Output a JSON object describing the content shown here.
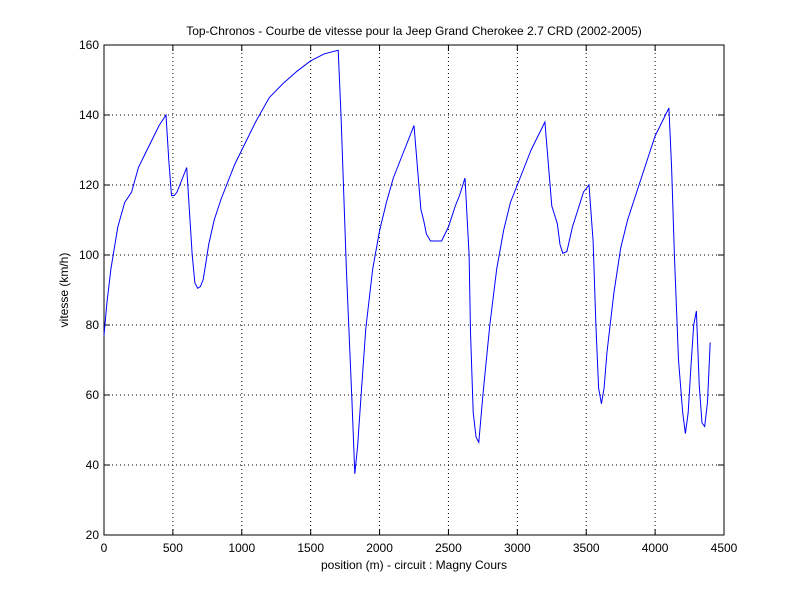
{
  "chart_data": {
    "type": "line",
    "title": "Top-Chronos - Courbe de vitesse pour la Jeep Grand Cherokee 2.7 CRD (2002-2005)",
    "xlabel": "position (m) - circuit : Magny Cours",
    "ylabel": "vitesse (km/h)",
    "xlim": [
      0,
      4500
    ],
    "ylim": [
      20,
      160
    ],
    "xticks": [
      0,
      500,
      1000,
      1500,
      2000,
      2500,
      3000,
      3500,
      4000,
      4500
    ],
    "yticks": [
      20,
      40,
      60,
      80,
      100,
      120,
      140,
      160
    ],
    "grid": true,
    "line_color": "#0000ff",
    "series": [
      {
        "x": [
          0,
          20,
          50,
          100,
          150,
          200,
          250,
          300,
          350,
          400,
          450,
          470,
          490,
          510,
          530,
          560,
          600,
          640,
          660,
          680,
          700,
          720,
          740,
          760,
          800,
          850,
          900,
          950,
          1000,
          1100,
          1200,
          1300,
          1400,
          1500,
          1600,
          1700,
          1720,
          1760,
          1800,
          1820,
          1840,
          1870,
          1900,
          1950,
          2000,
          2050,
          2100,
          2150,
          2200,
          2250,
          2300,
          2320,
          2340,
          2370,
          2400,
          2450,
          2500,
          2550,
          2580,
          2620,
          2650,
          2660,
          2680,
          2700,
          2720,
          2750,
          2800,
          2850,
          2900,
          2950,
          3000,
          3050,
          3100,
          3150,
          3200,
          3250,
          3290,
          3310,
          3330,
          3360,
          3400,
          3440,
          3480,
          3520,
          3550,
          3570,
          3590,
          3610,
          3630,
          3650,
          3700,
          3750,
          3800,
          3850,
          3900,
          3950,
          4000,
          4050,
          4100,
          4120,
          4140,
          4170,
          4200,
          4220,
          4240,
          4260,
          4280,
          4300,
          4320,
          4340,
          4360,
          4380,
          4400
        ],
        "y": [
          77,
          86,
          96,
          108,
          115,
          118,
          125,
          129,
          133,
          137,
          140,
          127,
          117,
          117,
          118,
          121,
          125,
          100,
          92,
          90.5,
          91,
          93,
          98,
          103,
          110,
          116,
          121,
          126,
          130,
          138,
          145,
          149,
          152.5,
          155.5,
          157.5,
          158.5,
          140,
          95,
          58,
          37.5,
          45,
          62,
          79,
          96,
          107,
          115,
          122,
          127,
          132,
          137,
          113,
          110,
          106,
          104,
          104,
          104,
          108,
          114,
          117,
          122,
          100,
          78,
          55,
          48,
          46.5,
          60,
          80,
          96,
          107,
          115,
          120,
          125,
          130,
          134,
          138,
          114,
          109,
          103,
          100.5,
          101,
          108,
          113,
          118,
          120,
          104,
          80,
          62,
          57.5,
          62,
          72,
          89,
          102,
          110,
          116,
          122,
          128,
          134,
          138,
          142,
          125,
          100,
          70,
          55,
          49,
          55,
          68,
          80,
          84,
          63,
          52,
          51,
          58,
          75
        ]
      }
    ]
  }
}
